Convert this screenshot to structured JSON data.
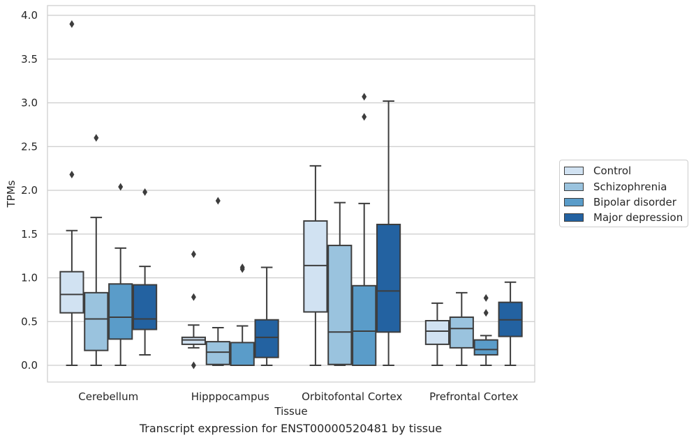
{
  "chart_data": {
    "type": "boxplot",
    "title": "",
    "caption": "Transcript expression for ENST00000520481 by tissue",
    "xlabel": "Tissue",
    "ylabel": "TPMs",
    "ylim": [
      -0.19,
      4.1
    ],
    "yticks": [
      "0.0",
      "0.5",
      "1.0",
      "1.5",
      "2.0",
      "2.5",
      "3.0",
      "3.5",
      "4.0"
    ],
    "grid": "horizontal",
    "legend_position": "right",
    "categories": [
      "Cerebellum",
      "Hipppocampus",
      "Orbitofontal Cortex",
      "Prefrontal Cortex"
    ],
    "series": [
      {
        "name": "Control",
        "color": "#d1e2f2",
        "boxes": [
          {
            "whislo": 0.0,
            "q1": 0.6,
            "med": 0.81,
            "q3": 1.07,
            "whishi": 1.54,
            "fliers": [
              3.9,
              2.18
            ]
          },
          {
            "whislo": 0.2,
            "q1": 0.24,
            "med": 0.29,
            "q3": 0.32,
            "whishi": 0.46,
            "fliers": [
              1.27,
              0.78,
              0.0
            ]
          },
          {
            "whislo": 0.0,
            "q1": 0.61,
            "med": 1.14,
            "q3": 1.65,
            "whishi": 2.28,
            "fliers": []
          },
          {
            "whislo": 0.0,
            "q1": 0.24,
            "med": 0.39,
            "q3": 0.51,
            "whishi": 0.71,
            "fliers": []
          }
        ]
      },
      {
        "name": "Schizophrenia",
        "color": "#9ac3de",
        "boxes": [
          {
            "whislo": 0.0,
            "q1": 0.17,
            "med": 0.53,
            "q3": 0.83,
            "whishi": 1.69,
            "fliers": [
              2.6
            ]
          },
          {
            "whislo": 0.0,
            "q1": 0.01,
            "med": 0.15,
            "q3": 0.27,
            "whishi": 0.43,
            "fliers": [
              1.88
            ]
          },
          {
            "whislo": 0.0,
            "q1": 0.01,
            "med": 0.38,
            "q3": 1.37,
            "whishi": 1.86,
            "fliers": []
          },
          {
            "whislo": 0.0,
            "q1": 0.2,
            "med": 0.42,
            "q3": 0.55,
            "whishi": 0.83,
            "fliers": []
          }
        ]
      },
      {
        "name": "Bipolar disorder",
        "color": "#5a9cc9",
        "boxes": [
          {
            "whislo": 0.0,
            "q1": 0.3,
            "med": 0.55,
            "q3": 0.93,
            "whishi": 1.34,
            "fliers": [
              2.04
            ]
          },
          {
            "whislo": 0.0,
            "q1": 0.0,
            "med": 0.0,
            "q3": 0.26,
            "whishi": 0.45,
            "fliers": [
              1.1,
              1.12
            ]
          },
          {
            "whislo": 0.0,
            "q1": 0.0,
            "med": 0.39,
            "q3": 0.91,
            "whishi": 1.85,
            "fliers": [
              3.07,
              2.84
            ]
          },
          {
            "whislo": 0.0,
            "q1": 0.12,
            "med": 0.18,
            "q3": 0.29,
            "whishi": 0.34,
            "fliers": [
              0.77,
              0.6
            ]
          }
        ]
      },
      {
        "name": "Major depression",
        "color": "#2362a1",
        "boxes": [
          {
            "whislo": 0.12,
            "q1": 0.41,
            "med": 0.53,
            "q3": 0.92,
            "whishi": 1.13,
            "fliers": [
              1.98
            ]
          },
          {
            "whislo": 0.0,
            "q1": 0.09,
            "med": 0.32,
            "q3": 0.52,
            "whishi": 1.12,
            "fliers": []
          },
          {
            "whislo": 0.0,
            "q1": 0.38,
            "med": 0.85,
            "q3": 1.61,
            "whishi": 3.02,
            "fliers": []
          },
          {
            "whislo": 0.0,
            "q1": 0.33,
            "med": 0.52,
            "q3": 0.72,
            "whishi": 0.95,
            "fliers": []
          }
        ]
      }
    ]
  }
}
